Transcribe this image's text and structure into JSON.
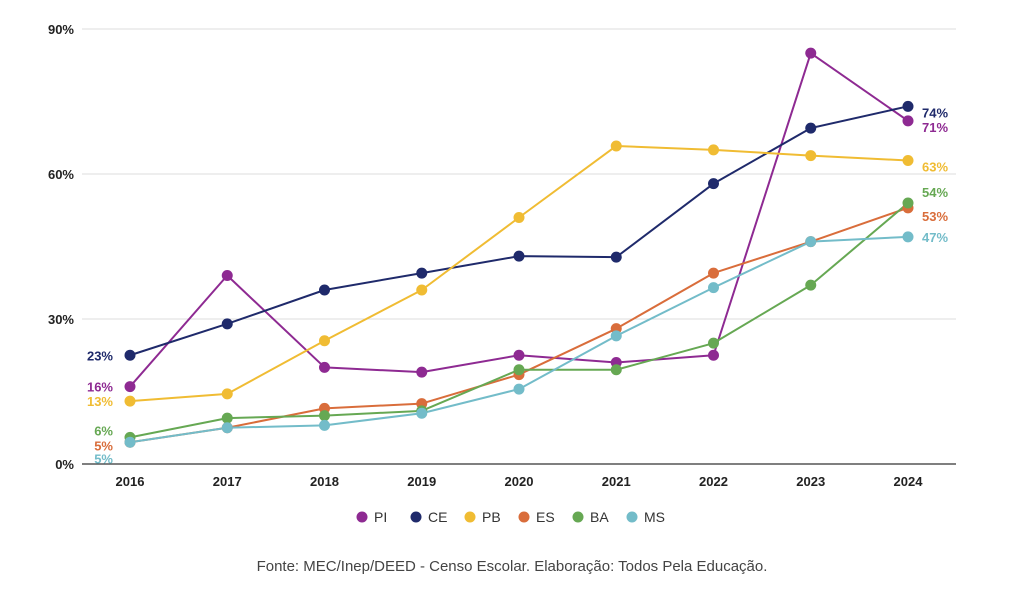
{
  "chart_data": {
    "type": "line",
    "title": "",
    "xlabel": "",
    "ylabel": "",
    "x": [
      "2016",
      "2017",
      "2018",
      "2019",
      "2020",
      "2021",
      "2022",
      "2023",
      "2024"
    ],
    "ylim": [
      0,
      90
    ],
    "yticks": [
      0,
      30,
      60,
      90
    ],
    "ytick_labels": [
      "0%",
      "30%",
      "60%",
      "90%"
    ],
    "grid": true,
    "legend_position": "bottom",
    "series": [
      {
        "name": "PI",
        "color": "#8e2a92",
        "values": [
          16,
          39,
          20,
          19,
          22.5,
          21,
          22.5,
          85,
          71
        ],
        "start_label": "16%",
        "end_label": "71%"
      },
      {
        "name": "CE",
        "color": "#1f2a6b",
        "values": [
          22.5,
          29,
          36,
          39.5,
          43,
          42.8,
          58,
          69.5,
          74
        ],
        "start_label": "23%",
        "end_label": "74%"
      },
      {
        "name": "PB",
        "color": "#f0bc33",
        "values": [
          13,
          14.5,
          25.5,
          36,
          51,
          65.8,
          65,
          63.8,
          62.8
        ],
        "start_label": "13%",
        "end_label": "63%"
      },
      {
        "name": "ES",
        "color": "#d96d3b",
        "values": [
          4.5,
          7.5,
          11.5,
          12.5,
          18.5,
          28,
          39.5,
          46,
          53
        ],
        "start_label": "5%",
        "end_label": "53%"
      },
      {
        "name": "BA",
        "color": "#66a853",
        "values": [
          5.5,
          9.5,
          10,
          11,
          19.5,
          19.5,
          25,
          37,
          54
        ],
        "start_label": "6%",
        "end_label": "54%"
      },
      {
        "name": "MS",
        "color": "#73bcc9",
        "values": [
          4.5,
          7.5,
          8,
          10.5,
          15.5,
          26.5,
          36.5,
          46,
          47
        ],
        "start_label": "5%",
        "end_label": "47%"
      }
    ]
  },
  "source_text": "Fonte: MEC/Inep/DEED - Censo Escolar. Elaboração: Todos Pela Educação."
}
